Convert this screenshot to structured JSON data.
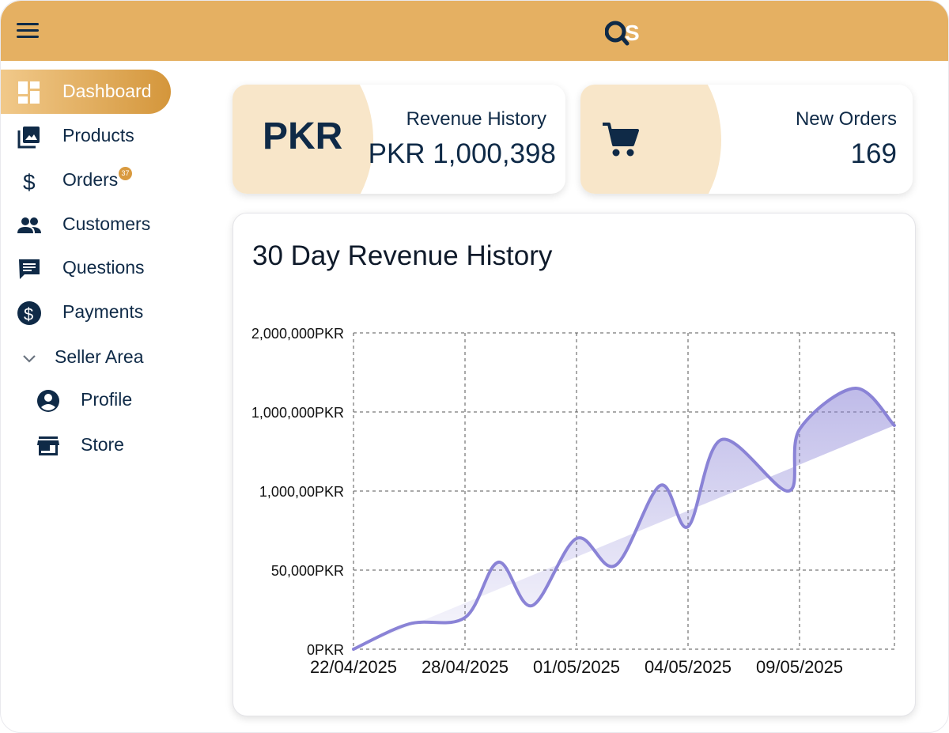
{
  "header": {
    "logo_text": "OS",
    "menu_icon": "menu-icon"
  },
  "sidebar": {
    "items": [
      {
        "label": "Dashboard",
        "icon": "dashboard-icon",
        "active": true
      },
      {
        "label": "Products",
        "icon": "photo-library-icon"
      },
      {
        "label": "Orders",
        "icon": "dollar-icon",
        "badge": "37"
      },
      {
        "label": "Customers",
        "icon": "people-icon"
      },
      {
        "label": "Questions",
        "icon": "message-icon"
      },
      {
        "label": "Payments",
        "icon": "dollar-circle-icon"
      },
      {
        "label": "Seller Area",
        "icon": "chevron-down-icon"
      },
      {
        "label": "Profile",
        "icon": "account-circle-icon"
      },
      {
        "label": "Store",
        "icon": "store-icon"
      }
    ]
  },
  "cards": {
    "revenue": {
      "badge": "PKR",
      "label": "Revenue History",
      "value": "PKR 1,000,398"
    },
    "orders": {
      "label": "New Orders",
      "value": "169",
      "icon": "cart-icon"
    }
  },
  "colors": {
    "accent": "#e5b062",
    "navy": "#0f2a47",
    "line": "#8a83d6",
    "blob": "#f8e6c9"
  },
  "chart_data": {
    "type": "area",
    "title": "30 Day Revenue History",
    "x_tick_labels": [
      "22/04/2025",
      "28/04/2025",
      "01/05/2025",
      "04/05/2025",
      "09/05/2025"
    ],
    "y_tick_labels": [
      "0PKR",
      "50,000PKR",
      "1,000,00PKR",
      "1,000,000PKR",
      "2,000,000PKR"
    ],
    "y_tick_level": [
      0,
      1,
      2,
      3,
      4
    ],
    "x_index": [
      0,
      0.5,
      1,
      1.3,
      1.6,
      2,
      2.35,
      2.75,
      3,
      3.3,
      3.9,
      4,
      4.5,
      4.85
    ],
    "y_level": [
      0,
      0.32,
      0.4,
      1.1,
      0.55,
      1.4,
      1.06,
      2.07,
      1.55,
      2.65,
      2,
      2.78,
      3.3,
      2.83
    ],
    "grid": true,
    "legend": "none"
  }
}
